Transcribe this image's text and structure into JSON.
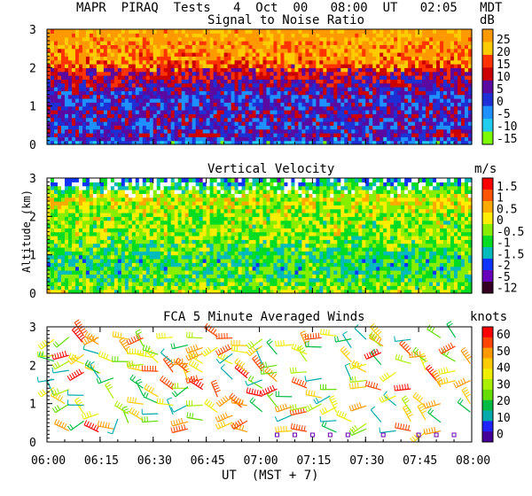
{
  "header": {
    "title": "MAPR  PIRAQ  Tests   4  Oct  00   08:00  UT   02:05   MDT"
  },
  "y_axis_label": "Altitude (km)",
  "chart_data": [
    {
      "type": "heatmap",
      "title": "Signal to Noise Ratio",
      "unit": "dB",
      "xlabel": "UT  (MST + 7)",
      "ylabel": "Altitude (km)",
      "xlim": [
        "06:00",
        "08:00"
      ],
      "ylim": [
        0,
        3
      ],
      "y_ticks": [
        "0",
        "1",
        "2",
        "3"
      ],
      "colorbar": {
        "labels": [
          "25",
          "20",
          "15",
          "10",
          "5",
          "0",
          "-5",
          "-10",
          "-15"
        ],
        "colors": [
          "#ff9900",
          "#ffcc00",
          "#ff3300",
          "#cc0000",
          "#5a0aa0",
          "#1f2fd6",
          "#1e90ff",
          "#22ccee",
          "#7cfc00"
        ]
      },
      "profile": [
        {
          "alt": 0.05,
          "level": 2
        },
        {
          "alt": 0.25,
          "level": 4
        },
        {
          "alt": 0.5,
          "level": 3
        },
        {
          "alt": 0.8,
          "level": 4
        },
        {
          "alt": 1.1,
          "level": 3
        },
        {
          "alt": 1.5,
          "level": 4
        },
        {
          "alt": 1.9,
          "level": 5
        },
        {
          "alt": 2.2,
          "level": 7
        },
        {
          "alt": 2.5,
          "level": 7
        },
        {
          "alt": 2.8,
          "level": 8
        }
      ]
    },
    {
      "type": "heatmap",
      "title": "Vertical Velocity",
      "unit": "m/s",
      "xlabel": "UT  (MST + 7)",
      "ylabel": "Altitude (km)",
      "xlim": [
        "06:00",
        "08:00"
      ],
      "ylim": [
        0,
        3
      ],
      "y_ticks": [
        "0",
        "1",
        "2",
        "3"
      ],
      "colorbar": {
        "labels": [
          "1.5",
          "1",
          "0.5",
          "0",
          "-0.5",
          "-1",
          "-1.5",
          "-2",
          "-5",
          "-12"
        ],
        "colors": [
          "#ff0000",
          "#ff5500",
          "#ffaa00",
          "#ffee00",
          "#88ee00",
          "#00dd22",
          "#00bbbb",
          "#1133ff",
          "#6600bb",
          "#330022"
        ]
      },
      "profile": [
        {
          "alt": 0.1,
          "level": 5
        },
        {
          "alt": 0.5,
          "level": 4
        },
        {
          "alt": 1.0,
          "level": 4
        },
        {
          "alt": 1.5,
          "level": 5
        },
        {
          "alt": 2.0,
          "level": 5
        },
        {
          "alt": 2.5,
          "level": 6
        },
        {
          "alt": 2.9,
          "level": 3
        }
      ]
    },
    {
      "type": "scatter",
      "title": "FCA 5 Minute Averaged Winds",
      "unit": "knots",
      "xlabel": "UT  (MST + 7)",
      "ylabel": "Altitude (km)",
      "xlim": [
        "06:00",
        "08:00"
      ],
      "ylim": [
        0,
        3
      ],
      "y_ticks": [
        "0",
        "1",
        "2",
        "3"
      ],
      "x_ticks": [
        "06:00",
        "06:15",
        "06:30",
        "06:45",
        "07:00",
        "07:15",
        "07:30",
        "07:45",
        "08:00"
      ],
      "colorbar": {
        "labels": [
          "60",
          "50",
          "40",
          "30",
          "20",
          "10",
          "0"
        ],
        "colors": [
          "#ff0000",
          "#ff4400",
          "#ff9900",
          "#ffcc00",
          "#eeee00",
          "#aaee00",
          "#66dd00",
          "#00bb44",
          "#00aaaa",
          "#2222ff",
          "#440099"
        ]
      },
      "samples": [
        {
          "time_min": 5,
          "alt": 1.0,
          "speed": 45,
          "dir_deg": 300
        },
        {
          "time_min": 10,
          "alt": 2.6,
          "speed": 60,
          "dir_deg": 320
        },
        {
          "time_min": 15,
          "alt": 1.8,
          "speed": 40,
          "dir_deg": 290
        },
        {
          "time_min": 20,
          "alt": 0.6,
          "speed": 10,
          "dir_deg": 200
        },
        {
          "time_min": 30,
          "alt": 2.2,
          "speed": 35,
          "dir_deg": 280
        },
        {
          "time_min": 40,
          "alt": 1.4,
          "speed": 30,
          "dir_deg": 270
        },
        {
          "time_min": 55,
          "alt": 0.9,
          "speed": 55,
          "dir_deg": 310
        },
        {
          "time_min": 65,
          "alt": 2.0,
          "speed": 25,
          "dir_deg": 260
        },
        {
          "time_min": 80,
          "alt": 1.2,
          "speed": 15,
          "dir_deg": 240
        },
        {
          "time_min": 95,
          "alt": 2.5,
          "speed": 50,
          "dir_deg": 300
        },
        {
          "time_min": 110,
          "alt": 1.6,
          "speed": 60,
          "dir_deg": 320
        }
      ]
    }
  ],
  "colors": {
    "missing": "#ffffff",
    "frame": "#000000"
  }
}
